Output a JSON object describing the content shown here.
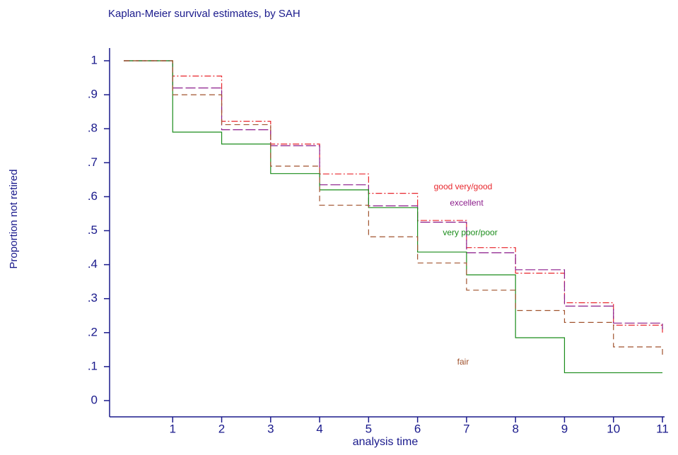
{
  "chart_data": {
    "type": "line",
    "step": true,
    "title": "Kaplan-Meier survival estimates, by SAH",
    "x_label": "analysis time",
    "y_label": "Proportion not retired",
    "x": [
      0,
      1,
      2,
      3,
      4,
      5,
      6,
      7,
      8,
      9,
      10,
      11
    ],
    "xlim": [
      0,
      11
    ],
    "xticks": [
      1,
      2,
      3,
      4,
      5,
      6,
      7,
      8,
      9,
      10,
      11
    ],
    "ylim": [
      0,
      1
    ],
    "yticks": [
      0,
      {
        "value": 0.1,
        "label": ".1"
      },
      {
        "value": 0.2,
        "label": ".2"
      },
      {
        "value": 0.3,
        "label": ".3"
      },
      {
        "value": 0.4,
        "label": ".4"
      },
      {
        "value": 0.5,
        "label": ".5"
      },
      {
        "value": 0.6,
        "label": ".6"
      },
      {
        "value": 0.7,
        "label": ".7"
      },
      {
        "value": 0.8,
        "label": ".8"
      },
      {
        "value": 0.9,
        "label": ".9"
      },
      1
    ],
    "grid": false,
    "series": [
      {
        "name": "good very/good",
        "color": "#e8262c",
        "dash": "9,3,2,3",
        "values": [
          1,
          0.955,
          0.822,
          0.755,
          0.667,
          0.61,
          0.53,
          0.45,
          0.375,
          0.288,
          0.222,
          0.2
        ]
      },
      {
        "name": "excellent",
        "color": "#8b1c8b",
        "dash": "14,4",
        "values": [
          1,
          0.92,
          0.797,
          0.75,
          0.635,
          0.573,
          0.525,
          0.435,
          0.385,
          0.278,
          0.228,
          0.21
        ]
      },
      {
        "name": "very poor/poor",
        "color": "#1a8c1a",
        "dash": "none",
        "values": [
          1,
          0.79,
          0.755,
          0.668,
          0.62,
          0.568,
          0.437,
          0.37,
          0.185,
          0.082,
          0.082,
          0.082
        ]
      },
      {
        "name": "fair",
        "color": "#a0522d",
        "dash": "8,5",
        "values": [
          1,
          0.9,
          0.812,
          0.69,
          0.575,
          0.482,
          0.405,
          0.325,
          0.265,
          0.23,
          0.158,
          0.135
        ]
      }
    ]
  }
}
